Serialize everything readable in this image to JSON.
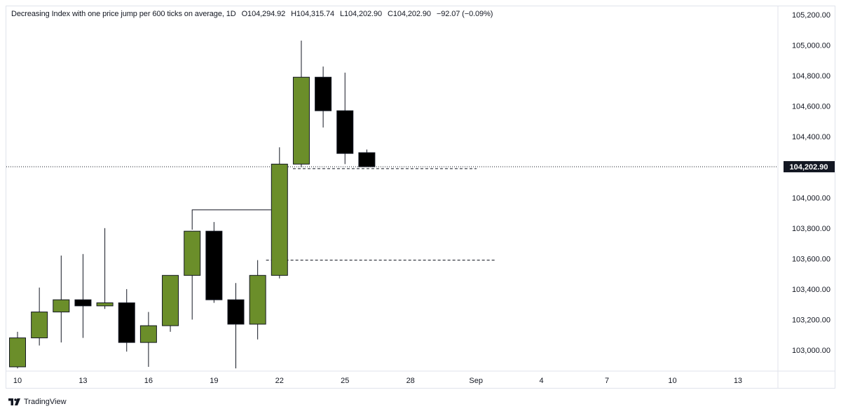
{
  "legend": {
    "title": "Decreasing Index with one price jump per 600 ticks on average, 1D",
    "open": "O104,294.92",
    "high": "H104,315.74",
    "low": "L104,202.90",
    "close": "C104,202.90",
    "change": "−92.07 (−0.09%)"
  },
  "footer": {
    "brand": "TradingView"
  },
  "colors": {
    "up": "#6b8e2a",
    "down": "#000000",
    "grid": "#e0e3eb"
  },
  "chart_data": {
    "type": "candlestick",
    "y_ticks": [
      "105,200.00",
      "105,000.00",
      "104,800.00",
      "104,600.00",
      "104,400.00",
      "104,000.00",
      "103,800.00",
      "103,600.00",
      "103,400.00",
      "103,200.00",
      "103,000.00"
    ],
    "y_tick_values": [
      105200,
      105000,
      104800,
      104600,
      104400,
      104000,
      103800,
      103600,
      103400,
      103200,
      103000
    ],
    "x_ticks": [
      "10",
      "13",
      "16",
      "19",
      "22",
      "25",
      "28",
      "Sep",
      "4",
      "7",
      "10",
      "13"
    ],
    "last_price_label": "104,202.90",
    "last_price": 104202.9,
    "ylim": [
      102880,
      105270
    ],
    "candles": [
      {
        "o": 102890,
        "h": 103120,
        "l": 102880,
        "c": 103080
      },
      {
        "o": 103080,
        "h": 103410,
        "l": 103030,
        "c": 103250
      },
      {
        "o": 103250,
        "h": 103620,
        "l": 103050,
        "c": 103330
      },
      {
        "o": 103330,
        "h": 103630,
        "l": 103080,
        "c": 103290
      },
      {
        "o": 103290,
        "h": 103800,
        "l": 103270,
        "c": 103310
      },
      {
        "o": 103310,
        "h": 103400,
        "l": 102990,
        "c": 103050
      },
      {
        "o": 103050,
        "h": 103250,
        "l": 102890,
        "c": 103160
      },
      {
        "o": 103160,
        "h": 103490,
        "l": 103120,
        "c": 103490
      },
      {
        "o": 103490,
        "h": 103780,
        "l": 103200,
        "c": 103780
      },
      {
        "o": 103780,
        "h": 103840,
        "l": 103310,
        "c": 103330
      },
      {
        "o": 103330,
        "h": 103440,
        "l": 102880,
        "c": 103170
      },
      {
        "o": 103170,
        "h": 103590,
        "l": 103070,
        "c": 103490
      },
      {
        "o": 103490,
        "h": 104330,
        "l": 103470,
        "c": 104220
      },
      {
        "o": 104220,
        "h": 105030,
        "l": 104200,
        "c": 104790
      },
      {
        "o": 104790,
        "h": 104860,
        "l": 104460,
        "c": 104570
      },
      {
        "o": 104570,
        "h": 104820,
        "l": 104220,
        "c": 104290
      },
      {
        "o": 104294.92,
        "h": 104315.74,
        "l": 104202.9,
        "c": 104202.9
      }
    ],
    "annotations": {
      "step_line": [
        103920,
        103920
      ],
      "dashed_line": 103590
    }
  }
}
